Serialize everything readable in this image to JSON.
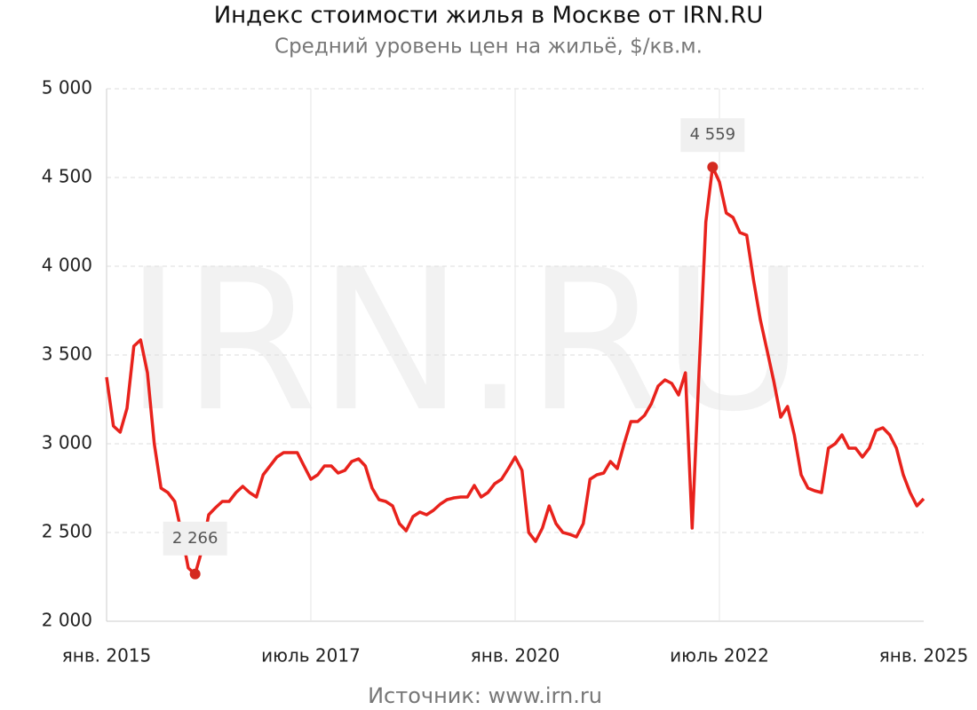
{
  "chart_data": {
    "type": "line",
    "title": "Индекс стоимости жилья в Москве от IRN.RU",
    "subtitle": "Средний уровень цен на жильё, $/кв.м.",
    "source": "Источник: www.irn.ru",
    "watermark": "IRN.RU",
    "x": [
      "2015-01",
      "2015-02",
      "2015-03",
      "2015-04",
      "2015-05",
      "2015-06",
      "2015-07",
      "2015-08",
      "2015-09",
      "2015-10",
      "2015-11",
      "2015-12",
      "2016-01",
      "2016-02",
      "2016-03",
      "2016-04",
      "2016-05",
      "2016-06",
      "2016-07",
      "2016-08",
      "2016-09",
      "2016-10",
      "2016-11",
      "2016-12",
      "2017-01",
      "2017-02",
      "2017-03",
      "2017-04",
      "2017-05",
      "2017-06",
      "2017-07",
      "2017-08",
      "2017-09",
      "2017-10",
      "2017-11",
      "2017-12",
      "2018-01",
      "2018-02",
      "2018-03",
      "2018-04",
      "2018-05",
      "2018-06",
      "2018-07",
      "2018-08",
      "2018-09",
      "2018-10",
      "2018-11",
      "2018-12",
      "2019-01",
      "2019-02",
      "2019-03",
      "2019-04",
      "2019-05",
      "2019-06",
      "2019-07",
      "2019-08",
      "2019-09",
      "2019-10",
      "2019-11",
      "2019-12",
      "2020-01",
      "2020-02",
      "2020-03",
      "2020-04",
      "2020-05",
      "2020-06",
      "2020-07",
      "2020-08",
      "2020-09",
      "2020-10",
      "2020-11",
      "2020-12",
      "2021-01",
      "2021-02",
      "2021-03",
      "2021-04",
      "2021-05",
      "2021-06",
      "2021-07",
      "2021-08",
      "2021-09",
      "2021-10",
      "2021-11",
      "2021-12",
      "2022-01",
      "2022-02",
      "2022-03",
      "2022-04",
      "2022-05",
      "2022-06",
      "2022-07",
      "2022-08",
      "2022-09",
      "2022-10",
      "2022-11",
      "2022-12",
      "2023-01",
      "2023-02",
      "2023-03",
      "2023-04",
      "2023-05",
      "2023-06",
      "2023-07",
      "2023-08",
      "2023-09",
      "2023-10",
      "2023-11",
      "2023-12",
      "2024-01",
      "2024-02",
      "2024-03",
      "2024-04",
      "2024-05",
      "2024-06",
      "2024-07",
      "2024-08",
      "2024-09",
      "2024-10",
      "2024-11",
      "2024-12",
      "2025-01"
    ],
    "series": [
      {
        "color": "#e8221c",
        "values": [
          3375,
          3100,
          3065,
          3200,
          3550,
          3585,
          3400,
          3000,
          2750,
          2725,
          2675,
          2500,
          2300,
          2266,
          2400,
          2600,
          2640,
          2675,
          2675,
          2725,
          2760,
          2725,
          2700,
          2825,
          2875,
          2925,
          2950,
          2950,
          2950,
          2875,
          2800,
          2825,
          2875,
          2875,
          2835,
          2850,
          2900,
          2915,
          2875,
          2750,
          2685,
          2675,
          2650,
          2550,
          2510,
          2590,
          2615,
          2600,
          2625,
          2660,
          2685,
          2695,
          2700,
          2700,
          2765,
          2700,
          2725,
          2775,
          2800,
          2860,
          2925,
          2850,
          2500,
          2450,
          2525,
          2650,
          2550,
          2500,
          2490,
          2475,
          2550,
          2800,
          2825,
          2835,
          2900,
          2860,
          3000,
          3125,
          3125,
          3160,
          3225,
          3325,
          3360,
          3340,
          3275,
          3400,
          2525,
          3400,
          4250,
          4559,
          4475,
          4300,
          4275,
          4190,
          4175,
          3925,
          3700,
          3525,
          3350,
          3150,
          3210,
          3050,
          2825,
          2750,
          2735,
          2725,
          2975,
          3000,
          3050,
          2975,
          2975,
          2925,
          2975,
          3075,
          3090,
          3050,
          2975,
          2825,
          2725,
          2650,
          2690
        ]
      }
    ],
    "annotations": [
      {
        "x": "2016-02",
        "label": "2 266"
      },
      {
        "x": "2022-06",
        "label": "4 559"
      }
    ],
    "xticks": [
      {
        "value": "2015-01",
        "label": "янв. 2015"
      },
      {
        "value": "2017-07",
        "label": "июль 2017"
      },
      {
        "value": "2020-01",
        "label": "янв. 2020"
      },
      {
        "value": "2022-07",
        "label": "июль 2022"
      },
      {
        "value": "2025-01",
        "label": "янв. 2025"
      }
    ],
    "ylim": [
      2000,
      5000
    ],
    "yticks": [
      {
        "value": 2000,
        "label": "2 000"
      },
      {
        "value": 2500,
        "label": "2 500"
      },
      {
        "value": 3000,
        "label": "3 000"
      },
      {
        "value": 3500,
        "label": "3 500"
      },
      {
        "value": 4000,
        "label": "4 000"
      },
      {
        "value": 4500,
        "label": "4 500"
      },
      {
        "value": 5000,
        "label": "5 000"
      }
    ],
    "grid": true
  }
}
